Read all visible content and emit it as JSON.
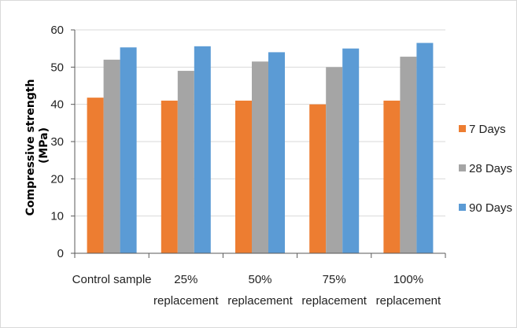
{
  "chart_data": {
    "type": "bar",
    "ylabel_lines": [
      "Compressive strength",
      "(MPa)"
    ],
    "xlabel": "",
    "categories": [
      [
        "Control sample"
      ],
      [
        "25%",
        "replacement"
      ],
      [
        "50%",
        "replacement"
      ],
      [
        "75%",
        "replacement"
      ],
      [
        "100%",
        "replacement"
      ]
    ],
    "series": [
      {
        "name": "7 Days",
        "color": "#ed7d31",
        "values": [
          41.8,
          41.0,
          41.0,
          40.0,
          41.0
        ]
      },
      {
        "name": "28 Days",
        "color": "#a5a5a5",
        "values": [
          52.0,
          49.0,
          51.5,
          50.0,
          52.8
        ]
      },
      {
        "name": "90 Days",
        "color": "#5b9bd5",
        "values": [
          55.3,
          55.6,
          54.0,
          55.0,
          56.5
        ]
      }
    ],
    "ylim": [
      0,
      60
    ],
    "yticks": [
      0,
      10,
      20,
      30,
      40,
      50,
      60
    ],
    "grid": true,
    "legend_position": "right"
  }
}
